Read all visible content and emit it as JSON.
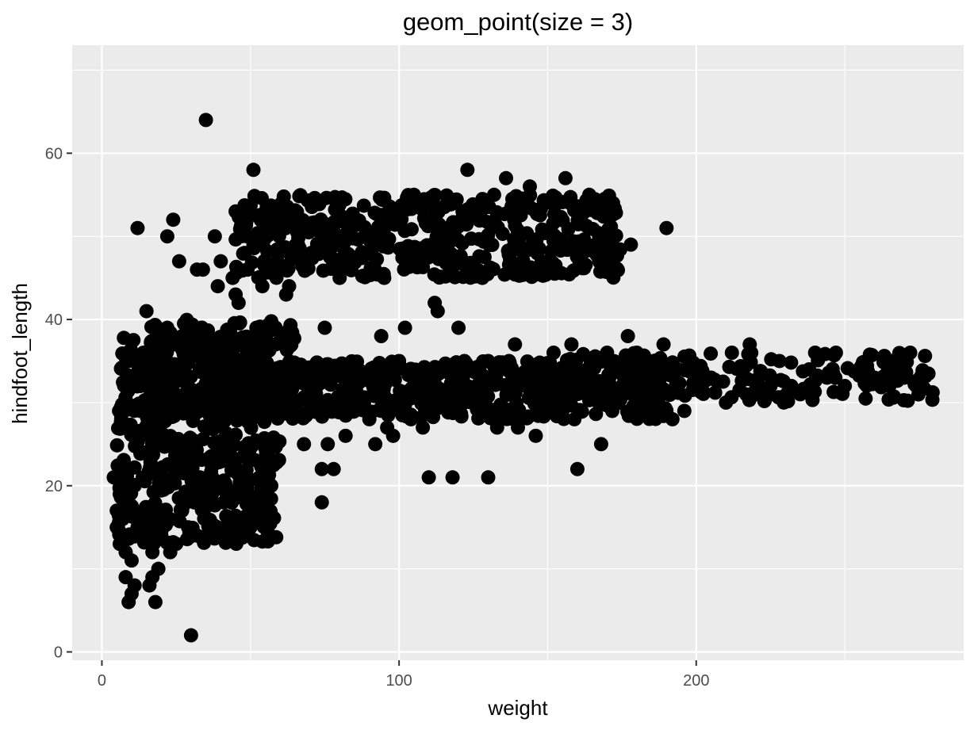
{
  "chart_data": {
    "type": "scatter",
    "title": "geom_point(size = 3)",
    "xlabel": "weight",
    "ylabel": "hindfoot_length",
    "xlim": [
      -10,
      290
    ],
    "ylim": [
      -1,
      73
    ],
    "xticks": [
      0,
      100,
      200
    ],
    "yticks": [
      0,
      20,
      40,
      60
    ],
    "grid": true,
    "legend": "none",
    "background": "#ebebeb",
    "grid_color": "#ffffff",
    "point_color": "#000000",
    "clusters": [
      {
        "x_range": [
          5,
          60
        ],
        "y_range": [
          13,
          38
        ],
        "count": 520
      },
      {
        "x_range": [
          15,
          65
        ],
        "y_range": [
          28,
          40
        ],
        "count": 260
      },
      {
        "x_range": [
          45,
          175
        ],
        "y_range": [
          45,
          55
        ],
        "count": 480
      },
      {
        "x_range": [
          60,
          190
        ],
        "y_range": [
          28,
          35
        ],
        "count": 460
      },
      {
        "x_range": [
          150,
          280
        ],
        "y_range": [
          30,
          36
        ],
        "count": 200
      }
    ],
    "points": [
      [
        4,
        21
      ],
      [
        5,
        15
      ],
      [
        5,
        17
      ],
      [
        6,
        19
      ],
      [
        6,
        13
      ],
      [
        7,
        16
      ],
      [
        7,
        22
      ],
      [
        8,
        12
      ],
      [
        8,
        9
      ],
      [
        9,
        18
      ],
      [
        9,
        6
      ],
      [
        10,
        11
      ],
      [
        10,
        7
      ],
      [
        11,
        20
      ],
      [
        11,
        8
      ],
      [
        12,
        15
      ],
      [
        12,
        51
      ],
      [
        13,
        29
      ],
      [
        13,
        32
      ],
      [
        14,
        36
      ],
      [
        14,
        24
      ],
      [
        15,
        41
      ],
      [
        16,
        33
      ],
      [
        16,
        8
      ],
      [
        17,
        9
      ],
      [
        17,
        12
      ],
      [
        18,
        6
      ],
      [
        18,
        35
      ],
      [
        19,
        10
      ],
      [
        20,
        14
      ],
      [
        21,
        26
      ],
      [
        22,
        39
      ],
      [
        22,
        50
      ],
      [
        23,
        12
      ],
      [
        24,
        52
      ],
      [
        25,
        13
      ],
      [
        26,
        47
      ],
      [
        27,
        17
      ],
      [
        28,
        30
      ],
      [
        29,
        15
      ],
      [
        30,
        2
      ],
      [
        31,
        37
      ],
      [
        32,
        46
      ],
      [
        33,
        21
      ],
      [
        34,
        46
      ],
      [
        35,
        64
      ],
      [
        36,
        31
      ],
      [
        37,
        19
      ],
      [
        38,
        50
      ],
      [
        39,
        44
      ],
      [
        40,
        47
      ],
      [
        41,
        18
      ],
      [
        42,
        33
      ],
      [
        43,
        24
      ],
      [
        44,
        45
      ],
      [
        45,
        43
      ],
      [
        45,
        53
      ],
      [
        46,
        42
      ],
      [
        47,
        21
      ],
      [
        48,
        48
      ],
      [
        49,
        46
      ],
      [
        50,
        15
      ],
      [
        51,
        49
      ],
      [
        51,
        58
      ],
      [
        52,
        39
      ],
      [
        53,
        21
      ],
      [
        54,
        44
      ],
      [
        55,
        23
      ],
      [
        56,
        31
      ],
      [
        57,
        20
      ],
      [
        59,
        47
      ],
      [
        60,
        51
      ],
      [
        61,
        37
      ],
      [
        62,
        43
      ],
      [
        63,
        44
      ],
      [
        64,
        29
      ],
      [
        66,
        49
      ],
      [
        68,
        25
      ],
      [
        70,
        30
      ],
      [
        72,
        51
      ],
      [
        74,
        22
      ],
      [
        74,
        18
      ],
      [
        75,
        39
      ],
      [
        76,
        25
      ],
      [
        78,
        22
      ],
      [
        80,
        45
      ],
      [
        82,
        26
      ],
      [
        85,
        32
      ],
      [
        88,
        48
      ],
      [
        90,
        28
      ],
      [
        92,
        25
      ],
      [
        94,
        38
      ],
      [
        95,
        45
      ],
      [
        96,
        27
      ],
      [
        98,
        26
      ],
      [
        100,
        35
      ],
      [
        102,
        39
      ],
      [
        104,
        28
      ],
      [
        105,
        55
      ],
      [
        108,
        27
      ],
      [
        110,
        21
      ],
      [
        112,
        42
      ],
      [
        113,
        41
      ],
      [
        115,
        50
      ],
      [
        118,
        21
      ],
      [
        120,
        39
      ],
      [
        122,
        35
      ],
      [
        123,
        58
      ],
      [
        126,
        32
      ],
      [
        128,
        45
      ],
      [
        130,
        21
      ],
      [
        130,
        35
      ],
      [
        133,
        27
      ],
      [
        136,
        57
      ],
      [
        137,
        35
      ],
      [
        139,
        37
      ],
      [
        140,
        27
      ],
      [
        141,
        46
      ],
      [
        144,
        56
      ],
      [
        146,
        26
      ],
      [
        148,
        47
      ],
      [
        150,
        29
      ],
      [
        152,
        36
      ],
      [
        155,
        29
      ],
      [
        156,
        57
      ],
      [
        158,
        37
      ],
      [
        159,
        28
      ],
      [
        160,
        22
      ],
      [
        162,
        32
      ],
      [
        164,
        55
      ],
      [
        166,
        49
      ],
      [
        168,
        25
      ],
      [
        170,
        36
      ],
      [
        172,
        54
      ],
      [
        175,
        32
      ],
      [
        177,
        38
      ],
      [
        178,
        49
      ],
      [
        180,
        36
      ],
      [
        185,
        29
      ],
      [
        188,
        33
      ],
      [
        189,
        37
      ],
      [
        190,
        51
      ],
      [
        192,
        28
      ],
      [
        196,
        29
      ],
      [
        200,
        32
      ],
      [
        205,
        33
      ],
      [
        210,
        30
      ],
      [
        212,
        36
      ],
      [
        215,
        34
      ],
      [
        218,
        37
      ],
      [
        220,
        31
      ],
      [
        225,
        32
      ],
      [
        228,
        35
      ],
      [
        232,
        32
      ],
      [
        235,
        31
      ],
      [
        238,
        34
      ],
      [
        240,
        36
      ],
      [
        244,
        33
      ],
      [
        247,
        36
      ],
      [
        250,
        32
      ],
      [
        255,
        34
      ],
      [
        260,
        33
      ],
      [
        265,
        32
      ],
      [
        270,
        33
      ],
      [
        272,
        36
      ],
      [
        274,
        32
      ],
      [
        276,
        33
      ]
    ]
  }
}
